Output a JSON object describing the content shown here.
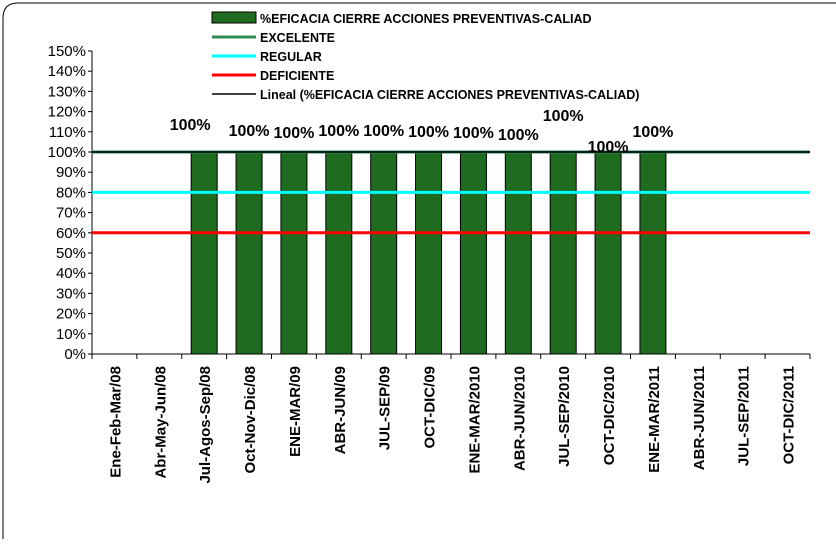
{
  "chart_data": {
    "type": "bar",
    "categories": [
      "Ene-Feb-Mar/08",
      "Abr-May-Jun/08",
      "Jul-Agos-Sep/08",
      "Oct-Nov-Dic/08",
      "ENE-MAR/09",
      "ABR-JUN/09",
      "JUL-SEP/09",
      "OCT-DIC/09",
      "ENE-MAR/2010",
      "ABR-JUN/2010",
      "JUL-SEP/2010",
      "OCT-DIC/2010",
      "ENE-MAR/2011",
      "ABR-JUN/2011",
      "JUL-SEP/2011",
      "OCT-DIC/2011"
    ],
    "series": [
      {
        "name": "%EFICACIA CIERRE ACCIONES PREVENTIVAS-CALIAD",
        "type": "bar",
        "color": "#1f6b1f",
        "values": [
          null,
          null,
          100,
          100,
          100,
          100,
          100,
          100,
          100,
          100,
          100,
          100,
          100,
          null,
          null,
          null
        ],
        "data_labels": [
          "",
          "",
          "100%",
          "100%",
          "100%",
          "100%",
          "100%",
          "100%",
          "100%",
          "100%",
          "100%",
          "100%",
          "100%",
          "",
          "",
          ""
        ]
      },
      {
        "name": "EXCELENTE",
        "type": "line",
        "color": "#2e8b57",
        "value": 100
      },
      {
        "name": "REGULAR",
        "type": "line",
        "color": "#00ffff",
        "value": 80
      },
      {
        "name": "DEFICIENTE",
        "type": "line",
        "color": "#ff0000",
        "value": 60
      },
      {
        "name": "Lineal (%EFICACIA CIERRE ACCIONES PREVENTIVAS-CALIAD)",
        "type": "trendline",
        "color": "#000000",
        "value": 100
      }
    ],
    "y_ticks": [
      "0%",
      "10%",
      "20%",
      "30%",
      "40%",
      "50%",
      "60%",
      "70%",
      "80%",
      "90%",
      "100%",
      "110%",
      "120%",
      "130%",
      "140%",
      "150%"
    ],
    "ylim": [
      0,
      150
    ],
    "grid": false,
    "legend_position": "top",
    "title": "",
    "xlabel": "",
    "ylabel": ""
  }
}
